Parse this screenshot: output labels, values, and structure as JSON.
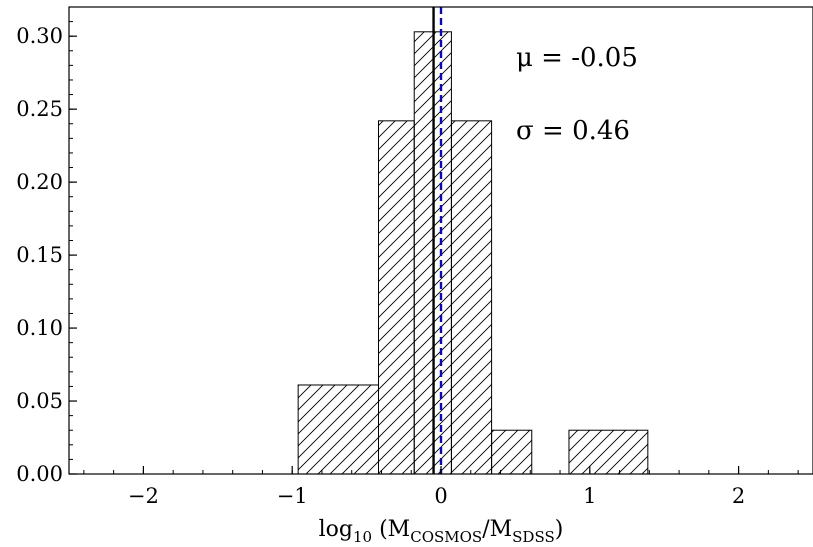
{
  "chart_data": {
    "type": "bar",
    "style": "step-histogram",
    "hatch": "diagonal",
    "bins": [
      {
        "x0": -0.96,
        "x1": -0.42,
        "value": 0.061
      },
      {
        "x0": -0.42,
        "x1": -0.18,
        "value": 0.242
      },
      {
        "x0": -0.18,
        "x1": 0.07,
        "value": 0.303
      },
      {
        "x0": 0.07,
        "x1": 0.34,
        "value": 0.242
      },
      {
        "x0": 0.34,
        "x1": 0.61,
        "value": 0.03
      },
      {
        "x0": 0.86,
        "x1": 1.39,
        "value": 0.03
      }
    ],
    "vlines": [
      {
        "x": -0.05,
        "color": "#000000",
        "style": "solid"
      },
      {
        "x": 0.0,
        "color": "#0a0ab4",
        "style": "dashed"
      }
    ],
    "annotations": [
      "μ = -0.05",
      "σ = 0.46"
    ],
    "xlabel": "log10 (MCOSMOS/MSDSS)",
    "xlabel_parts": {
      "pre": "log",
      "sub1": "10",
      "mid": " (M",
      "sub2": "COSMOS",
      "mid2": "/M",
      "sub3": "SDSS",
      "post": ")"
    },
    "xlim": [
      -2.5,
      2.5
    ],
    "ylim": [
      0,
      0.32
    ],
    "xticks": [
      {
        "v": -2,
        "label": "−2"
      },
      {
        "v": -1,
        "label": "−1"
      },
      {
        "v": 0,
        "label": "0"
      },
      {
        "v": 1,
        "label": "1"
      },
      {
        "v": 2,
        "label": "2"
      }
    ],
    "yticks": [
      {
        "v": 0.0,
        "label": "0.00"
      },
      {
        "v": 0.05,
        "label": "0.05"
      },
      {
        "v": 0.1,
        "label": "0.10"
      },
      {
        "v": 0.15,
        "label": "0.15"
      },
      {
        "v": 0.2,
        "label": "0.20"
      },
      {
        "v": 0.25,
        "label": "0.25"
      },
      {
        "v": 0.3,
        "label": "0.30"
      }
    ],
    "grid": false
  }
}
